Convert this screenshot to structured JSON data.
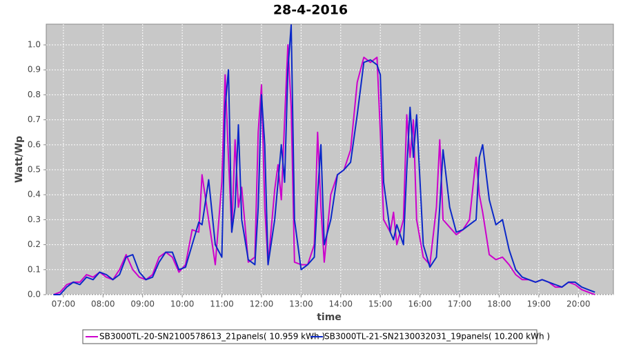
{
  "chart_data": {
    "type": "line",
    "title": "28-4-2016",
    "xlabel": "time",
    "ylabel": "Watt/Wp",
    "xlim": [
      "06:34",
      "20:53"
    ],
    "xticks": [
      "07:00",
      "08:00",
      "09:00",
      "10:00",
      "11:00",
      "12:00",
      "13:00",
      "14:00",
      "15:00",
      "16:00",
      "17:00",
      "18:00",
      "19:00",
      "20:00"
    ],
    "ylim": [
      0,
      1.083
    ],
    "yticks": [
      {
        "value": 0,
        "label": "0.0"
      },
      0.1,
      0.2,
      0.3,
      0.4,
      0.5,
      0.6,
      0.7,
      0.8,
      0.9,
      {
        "value": 1,
        "label": "1.0"
      }
    ],
    "grid": true,
    "legend": "bottom",
    "x": [
      "06:45",
      "06:55",
      "07:05",
      "07:15",
      "07:25",
      "07:35",
      "07:45",
      "07:55",
      "08:05",
      "08:15",
      "08:25",
      "08:35",
      "08:45",
      "08:55",
      "09:05",
      "09:15",
      "09:25",
      "09:35",
      "09:45",
      "09:55",
      "10:05",
      "10:15",
      "10:25",
      "10:30",
      "10:40",
      "10:50",
      "11:00",
      "11:05",
      "11:10",
      "11:15",
      "11:20",
      "11:25",
      "11:30",
      "11:40",
      "11:50",
      "11:55",
      "12:00",
      "12:05",
      "12:10",
      "12:20",
      "12:25",
      "12:30",
      "12:35",
      "12:40",
      "12:45",
      "12:50",
      "13:00",
      "13:10",
      "13:20",
      "13:25",
      "13:30",
      "13:35",
      "13:45",
      "13:55",
      "14:05",
      "14:15",
      "14:25",
      "14:35",
      "14:45",
      "14:55",
      "15:00",
      "15:05",
      "15:15",
      "15:20",
      "15:25",
      "15:35",
      "15:40",
      "15:45",
      "15:50",
      "15:55",
      "16:05",
      "16:15",
      "16:25",
      "16:30",
      "16:35",
      "16:45",
      "16:55",
      "17:05",
      "17:15",
      "17:25",
      "17:30",
      "17:35",
      "17:45",
      "17:55",
      "18:05",
      "18:15",
      "18:25",
      "18:35",
      "18:45",
      "18:55",
      "19:05",
      "19:15",
      "19:25",
      "19:35",
      "19:45",
      "19:55",
      "20:05",
      "20:15",
      "20:25"
    ],
    "series": [
      {
        "name": "SB3000TL-20-SN2100578613_21panels( 10.959 kWh )",
        "color": "#cc00cc",
        "values": [
          0.0,
          0.01,
          0.04,
          0.05,
          0.05,
          0.08,
          0.07,
          0.09,
          0.07,
          0.06,
          0.1,
          0.16,
          0.1,
          0.07,
          0.06,
          0.08,
          0.15,
          0.17,
          0.15,
          0.09,
          0.12,
          0.26,
          0.25,
          0.48,
          0.3,
          0.12,
          0.45,
          0.88,
          0.55,
          0.25,
          0.62,
          0.35,
          0.43,
          0.13,
          0.15,
          0.65,
          0.84,
          0.35,
          0.12,
          0.42,
          0.52,
          0.38,
          0.7,
          1.0,
          0.75,
          0.13,
          0.12,
          0.12,
          0.2,
          0.65,
          0.35,
          0.13,
          0.4,
          0.48,
          0.5,
          0.58,
          0.85,
          0.95,
          0.93,
          0.95,
          0.65,
          0.3,
          0.25,
          0.33,
          0.2,
          0.3,
          0.72,
          0.55,
          0.7,
          0.3,
          0.15,
          0.12,
          0.35,
          0.62,
          0.3,
          0.27,
          0.24,
          0.26,
          0.3,
          0.55,
          0.4,
          0.33,
          0.16,
          0.14,
          0.15,
          0.12,
          0.08,
          0.06,
          0.06,
          0.05,
          0.06,
          0.05,
          0.03,
          0.03,
          0.05,
          0.04,
          0.02,
          0.01,
          0.0
        ]
      },
      {
        "name": "SB3000TL-21-SN2130032031_19panels( 10.200 kWh )",
        "color": "#0a28c8",
        "values": [
          0.0,
          0.0,
          0.03,
          0.05,
          0.04,
          0.07,
          0.06,
          0.09,
          0.08,
          0.06,
          0.08,
          0.15,
          0.16,
          0.09,
          0.06,
          0.07,
          0.13,
          0.17,
          0.17,
          0.1,
          0.11,
          0.2,
          0.29,
          0.28,
          0.46,
          0.2,
          0.15,
          0.75,
          0.9,
          0.25,
          0.35,
          0.68,
          0.3,
          0.14,
          0.12,
          0.35,
          0.8,
          0.6,
          0.12,
          0.3,
          0.45,
          0.6,
          0.45,
          0.9,
          1.08,
          0.3,
          0.1,
          0.12,
          0.15,
          0.4,
          0.6,
          0.2,
          0.3,
          0.48,
          0.5,
          0.53,
          0.72,
          0.93,
          0.94,
          0.92,
          0.88,
          0.45,
          0.25,
          0.22,
          0.28,
          0.2,
          0.5,
          0.75,
          0.55,
          0.72,
          0.2,
          0.11,
          0.15,
          0.35,
          0.58,
          0.35,
          0.25,
          0.26,
          0.28,
          0.3,
          0.55,
          0.6,
          0.38,
          0.28,
          0.3,
          0.18,
          0.1,
          0.07,
          0.06,
          0.05,
          0.06,
          0.05,
          0.04,
          0.03,
          0.05,
          0.05,
          0.03,
          0.02,
          0.01
        ]
      }
    ]
  }
}
